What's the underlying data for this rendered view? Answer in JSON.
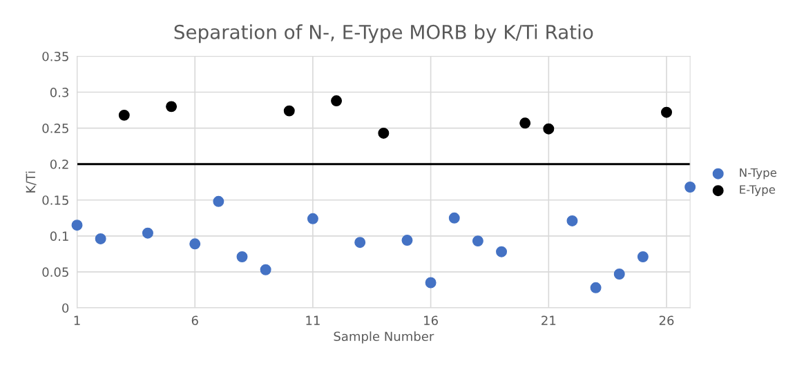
{
  "chart_data": {
    "type": "scatter",
    "title": "Separation of N-, E-Type MORB by K/Ti Ratio",
    "xlabel": "Sample Number",
    "ylabel": "K/Ti",
    "series": [
      {
        "name": "N-Type",
        "color": "#4472c4",
        "x": [
          1,
          2,
          4,
          6,
          7,
          8,
          9,
          11,
          13,
          15,
          16,
          17,
          18,
          19,
          22,
          23,
          24,
          25,
          27
        ],
        "values": [
          0.115,
          0.096,
          0.104,
          0.089,
          0.148,
          0.071,
          0.053,
          0.124,
          0.091,
          0.094,
          0.035,
          0.125,
          0.093,
          0.078,
          0.121,
          0.028,
          0.047,
          0.071,
          0.168
        ]
      },
      {
        "name": "E-Type",
        "color": "#000000",
        "x": [
          3,
          5,
          10,
          12,
          14,
          20,
          21,
          26
        ],
        "values": [
          0.268,
          0.28,
          0.274,
          0.288,
          0.243,
          0.257,
          0.249,
          0.272
        ]
      }
    ],
    "ref_lines": [
      {
        "axis": "y",
        "value": 0.2,
        "label": null,
        "color": "#000000",
        "line_style": "solid"
      }
    ],
    "xlim": [
      1,
      27
    ],
    "xticks": [
      1,
      6,
      11,
      16,
      21,
      26
    ],
    "ylim": [
      0,
      0.35
    ],
    "yticks": [
      0,
      0.05,
      0.1,
      0.15,
      0.2,
      0.25,
      0.3,
      0.35
    ],
    "grid": true,
    "legend": "right",
    "marker": "circle"
  }
}
